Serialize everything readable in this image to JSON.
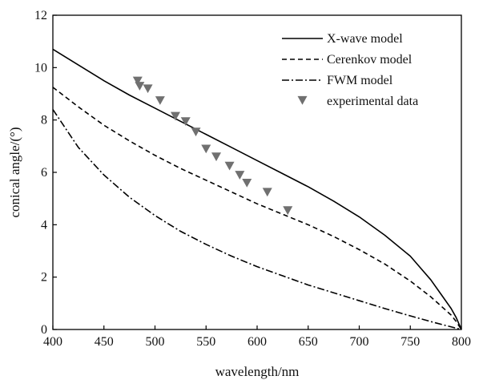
{
  "chart_data": {
    "type": "line",
    "title": "",
    "xlabel": "wavelength/nm",
    "ylabel": "conical angle/(°)",
    "xlim": [
      400,
      800
    ],
    "ylim": [
      0,
      12
    ],
    "xticks": [
      400,
      450,
      500,
      550,
      600,
      650,
      700,
      750,
      800
    ],
    "yticks": [
      0,
      2,
      4,
      6,
      8,
      10,
      12
    ],
    "grid": false,
    "legend_position": "top-right",
    "series": [
      {
        "name": "X-wave model",
        "style": "solid",
        "color": "#000000",
        "x": [
          400,
          425,
          450,
          475,
          500,
          525,
          550,
          575,
          600,
          625,
          650,
          675,
          700,
          725,
          750,
          760,
          770,
          780,
          790,
          795,
          800
        ],
        "y": [
          10.7,
          10.1,
          9.5,
          8.95,
          8.45,
          7.95,
          7.45,
          6.95,
          6.45,
          5.95,
          5.45,
          4.9,
          4.3,
          3.6,
          2.8,
          2.35,
          1.9,
          1.35,
          0.8,
          0.45,
          0.0
        ]
      },
      {
        "name": "Cerenkov model",
        "style": "dashed",
        "color": "#000000",
        "x": [
          400,
          425,
          450,
          475,
          500,
          525,
          550,
          575,
          600,
          625,
          650,
          675,
          700,
          725,
          750,
          770,
          790,
          795,
          800
        ],
        "y": [
          9.25,
          8.5,
          7.8,
          7.2,
          6.65,
          6.15,
          5.7,
          5.25,
          4.8,
          4.4,
          4.0,
          3.55,
          3.05,
          2.5,
          1.85,
          1.25,
          0.55,
          0.3,
          0.0
        ]
      },
      {
        "name": "FWM model",
        "style": "dashdot",
        "color": "#000000",
        "x": [
          400,
          425,
          450,
          475,
          500,
          525,
          550,
          575,
          600,
          625,
          650,
          675,
          700,
          725,
          750,
          775,
          800
        ],
        "y": [
          8.4,
          6.95,
          5.9,
          5.05,
          4.35,
          3.75,
          3.25,
          2.8,
          2.4,
          2.05,
          1.7,
          1.4,
          1.1,
          0.8,
          0.52,
          0.25,
          0.0
        ]
      },
      {
        "name": "experimental data",
        "style": "markers",
        "marker": "triangle-down",
        "color": "#707070",
        "x": [
          483,
          485,
          493,
          505,
          520,
          530,
          540,
          550,
          560,
          573,
          583,
          590,
          610,
          630
        ],
        "y": [
          9.5,
          9.3,
          9.2,
          8.75,
          8.15,
          7.95,
          7.55,
          6.9,
          6.6,
          6.25,
          5.9,
          5.6,
          5.25,
          4.55
        ]
      }
    ]
  }
}
